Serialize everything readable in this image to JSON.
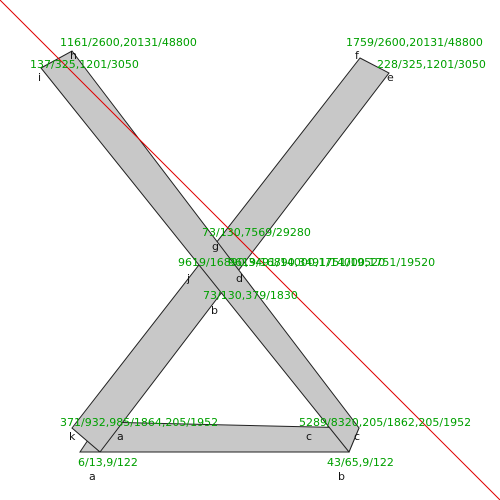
{
  "diagram": {
    "colors": {
      "shape_fill": "#c8c8c8",
      "shape_stroke": "#222222",
      "guide_line": "#e00000",
      "coordinate_text": "#00a000",
      "vertex_text": "#111111"
    },
    "vertex_labels": {
      "h": "h",
      "i": "i",
      "f": "f",
      "e": "e",
      "g": "g",
      "j": "j",
      "d": "d",
      "b_mid": "b",
      "k": "k",
      "a_inner": "a",
      "c_inner": "c",
      "c_outer": "c",
      "a_bottom": "a",
      "b_bottom": "b"
    },
    "coordinate_labels": {
      "h": "1161/2600,20131/48800",
      "i": "137/325,1201/3050",
      "f": "1759/2600,20131/48800",
      "e": "228/325,1201/3050",
      "g": "73/130,7569/29280",
      "j": "9619/16890,3491/14000,1751/19520",
      "d": "9619/16890,3491/14000,1751/19520",
      "b_mid": "73/130,379/1830",
      "k": "371/932,985/1864,205/1952",
      "c_right": "5289/8320,205/1862,205/1952",
      "a_bottom": "6/13,9/122",
      "b_bottom": "43/65,9/122"
    }
  }
}
